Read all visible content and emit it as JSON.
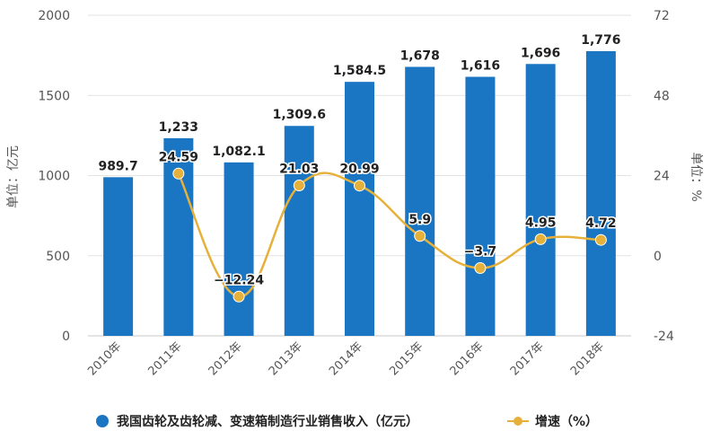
{
  "chart_data": {
    "type": "bar",
    "categories": [
      "2010年",
      "2011年",
      "2012年",
      "2013年",
      "2014年",
      "2015年",
      "2016年",
      "2017年",
      "2018年"
    ],
    "series": [
      {
        "name": "我国齿轮及齿轮减、变速箱制造行业销售收入（亿元）",
        "type": "bar",
        "axis": "left",
        "color": "#1a75c2",
        "values": [
          989.7,
          1233,
          1082.1,
          1309.6,
          1584.5,
          1678,
          1616,
          1696,
          1776
        ],
        "labels": [
          "989.7",
          "1,233",
          "1,082.1",
          "1,309.6",
          "1,584.5",
          "1,678",
          "1,616",
          "1,696",
          "1,776"
        ]
      },
      {
        "name": "增速（%）",
        "type": "line",
        "axis": "right",
        "color": "#e6b13a",
        "values": [
          null,
          24.59,
          -12.24,
          21.03,
          20.99,
          5.9,
          -3.7,
          4.95,
          4.72
        ],
        "labels": [
          "",
          "24.59",
          "−12.24",
          "21.03",
          "20.99",
          "5.9",
          "−3.7",
          "4.95",
          "4.72"
        ]
      }
    ],
    "ylabel": "单位：亿元",
    "ylabel_right": "单位：%",
    "ylim": [
      0,
      2000
    ],
    "ylim_right": [
      -24,
      72
    ],
    "yticks": [
      "0",
      "500",
      "1000",
      "1500",
      "2000"
    ],
    "yticks_right": [
      "-24",
      "0",
      "24",
      "48",
      "72"
    ],
    "grid": true,
    "legend_position": "bottom"
  }
}
